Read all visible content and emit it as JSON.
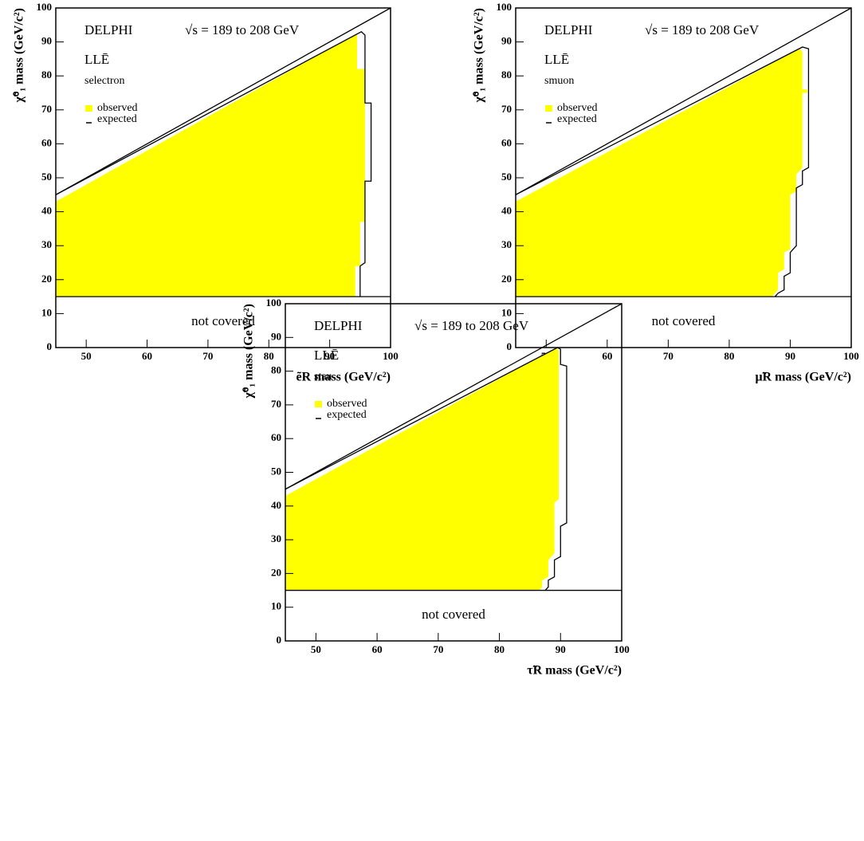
{
  "chart_data": [
    {
      "type": "area",
      "experiment": "DELPHI",
      "energy": "√s = 189 to 208 GeV",
      "coupling": "LLĒ",
      "label": "selectron",
      "region_label": "not covered",
      "x_label": "ẽR mass (GeV/c²)",
      "y_label": "χ̃⁰₁ mass (GeV/c²)",
      "xlim": [
        45,
        100
      ],
      "ylim": [
        0,
        100
      ],
      "xticks": [
        50,
        60,
        70,
        80,
        90,
        100
      ],
      "yticks": [
        0,
        10,
        20,
        30,
        40,
        50,
        60,
        70,
        80,
        90,
        100
      ],
      "lower_bound": 15,
      "series": [
        {
          "name": "observed",
          "color": "#ffff00",
          "x": [
            45,
            45,
            94.5,
            94.5,
            95.8,
            95.8,
            95,
            95,
            94.2,
            94.2
          ],
          "values": [
            15,
            43,
            92.5,
            82,
            82,
            37,
            37,
            24,
            24,
            15
          ]
        },
        {
          "name": "expected",
          "color": "#000000",
          "x": [
            45,
            95.2,
            95.8,
            95.8,
            96.8,
            96.8,
            95.8,
            95.8,
            95,
            95
          ],
          "values": [
            45,
            93,
            92,
            72,
            72,
            49,
            49,
            25,
            24,
            15
          ]
        }
      ]
    },
    {
      "type": "area",
      "experiment": "DELPHI",
      "energy": "√s = 189 to 208 GeV",
      "coupling": "LLĒ",
      "label": "smuon",
      "region_label": "not covered",
      "x_label": "μ̃R mass (GeV/c²)",
      "y_label": "χ̃⁰₁ mass (GeV/c²)",
      "xlim": [
        45,
        100
      ],
      "ylim": [
        0,
        100
      ],
      "xticks": [
        50,
        60,
        70,
        80,
        90,
        100
      ],
      "yticks": [
        0,
        10,
        20,
        30,
        40,
        50,
        60,
        70,
        80,
        90,
        100
      ],
      "lower_bound": 15,
      "series": [
        {
          "name": "observed",
          "color": "#ffff00",
          "x": [
            45,
            45,
            91.5,
            92,
            92,
            92.8,
            92.8,
            92,
            92,
            91,
            91,
            90,
            90,
            89,
            89,
            88,
            88,
            87
          ],
          "values": [
            15,
            43,
            88,
            87,
            76,
            76,
            75,
            75,
            53,
            51,
            46,
            45,
            29,
            28,
            23,
            22,
            17,
            15
          ]
        },
        {
          "name": "expected",
          "color": "#000000",
          "x": [
            45,
            92,
            93,
            93,
            92,
            92,
            91,
            91,
            90,
            90,
            89,
            89,
            88,
            87.5
          ],
          "values": [
            45,
            88.5,
            88,
            53,
            52,
            48,
            47,
            30,
            28,
            22,
            21,
            17,
            16,
            15
          ]
        }
      ]
    },
    {
      "type": "area",
      "experiment": "DELPHI",
      "energy": "√s = 189 to 208 GeV",
      "coupling": "LLĒ",
      "label": "stau",
      "region_label": "not covered",
      "x_label": "τ̃R mass (GeV/c²)",
      "y_label": "χ̃⁰₁ mass (GeV/c²)",
      "xlim": [
        45,
        100
      ],
      "ylim": [
        0,
        100
      ],
      "xticks": [
        50,
        60,
        70,
        80,
        90,
        100
      ],
      "yticks": [
        0,
        10,
        20,
        30,
        40,
        50,
        60,
        70,
        80,
        90,
        100
      ],
      "lower_bound": 15,
      "series": [
        {
          "name": "observed",
          "color": "#ffff00",
          "x": [
            45,
            45,
            89.3,
            89.7,
            89.7,
            89,
            89,
            88,
            88,
            87,
            87,
            86.5
          ],
          "values": [
            15,
            43,
            87,
            86,
            42,
            41,
            26,
            24,
            19,
            18,
            16,
            15
          ]
        },
        {
          "name": "expected",
          "color": "#000000",
          "x": [
            45,
            89.5,
            90,
            90,
            91,
            91,
            90,
            90,
            89,
            89,
            88,
            88,
            87.5
          ],
          "values": [
            45,
            87,
            86.5,
            82,
            81.5,
            35,
            34,
            25,
            24,
            19,
            18,
            16,
            15
          ]
        }
      ]
    }
  ]
}
